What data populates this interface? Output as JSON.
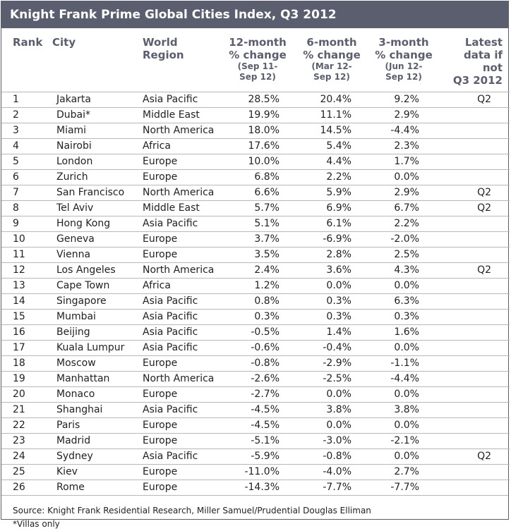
{
  "title": "Knight Frank Prime Global Cities Index, Q3 2012",
  "headers": {
    "rank": "Rank",
    "city": "City",
    "region_line1": "World",
    "region_line2": "Region",
    "m12_line1": "12-month",
    "m12_line2": "% change",
    "m12_sub1": "(Sep 11-",
    "m12_sub2": "Sep 12)",
    "m6_line1": "6-month",
    "m6_line2": "% change",
    "m6_sub1": "(Mar 12-",
    "m6_sub2": "Sep 12)",
    "m3_line1": "3-month",
    "m3_line2": "% change",
    "m3_sub1": "(Jun 12-",
    "m3_sub2": "Sep 12)",
    "latest_line1": "Latest",
    "latest_line2": "data if not",
    "latest_line3": "Q3 2012"
  },
  "rows": [
    {
      "rank": "1",
      "city": "Jakarta",
      "region": "Asia Pacific",
      "m12": "28.5%",
      "m6": "20.4%",
      "m3": "9.2%",
      "latest": "Q2"
    },
    {
      "rank": "2",
      "city": "Dubai*",
      "region": "Middle East",
      "m12": "19.9%",
      "m6": "11.1%",
      "m3": "2.9%",
      "latest": ""
    },
    {
      "rank": "3",
      "city": "Miami",
      "region": "North America",
      "m12": "18.0%",
      "m6": "14.5%",
      "m3": "-4.4%",
      "latest": ""
    },
    {
      "rank": "4",
      "city": "Nairobi",
      "region": "Africa",
      "m12": "17.6%",
      "m6": "5.4%",
      "m3": "2.3%",
      "latest": ""
    },
    {
      "rank": "5",
      "city": "London",
      "region": "Europe",
      "m12": "10.0%",
      "m6": "4.4%",
      "m3": "1.7%",
      "latest": ""
    },
    {
      "rank": "6",
      "city": "Zurich",
      "region": "Europe",
      "m12": "6.8%",
      "m6": "2.2%",
      "m3": "0.0%",
      "latest": ""
    },
    {
      "rank": "7",
      "city": "San Francisco",
      "region": "North America",
      "m12": "6.6%",
      "m6": "5.9%",
      "m3": "2.9%",
      "latest": "Q2"
    },
    {
      "rank": "8",
      "city": "Tel Aviv",
      "region": "Middle East",
      "m12": "5.7%",
      "m6": "6.9%",
      "m3": "6.7%",
      "latest": "Q2"
    },
    {
      "rank": "9",
      "city": "Hong Kong",
      "region": "Asia Pacific",
      "m12": "5.1%",
      "m6": "6.1%",
      "m3": "2.2%",
      "latest": ""
    },
    {
      "rank": "10",
      "city": "Geneva",
      "region": "Europe",
      "m12": "3.7%",
      "m6": "-6.9%",
      "m3": "-2.0%",
      "latest": ""
    },
    {
      "rank": "11",
      "city": "Vienna",
      "region": "Europe",
      "m12": "3.5%",
      "m6": "2.8%",
      "m3": "2.5%",
      "latest": ""
    },
    {
      "rank": "12",
      "city": "Los Angeles",
      "region": "North America",
      "m12": "2.4%",
      "m6": "3.6%",
      "m3": "4.3%",
      "latest": "Q2"
    },
    {
      "rank": "13",
      "city": "Cape Town",
      "region": "Africa",
      "m12": "1.2%",
      "m6": "0.0%",
      "m3": "0.0%",
      "latest": ""
    },
    {
      "rank": "14",
      "city": "Singapore",
      "region": "Asia Pacific",
      "m12": "0.8%",
      "m6": "0.3%",
      "m3": "6.3%",
      "latest": ""
    },
    {
      "rank": "15",
      "city": "Mumbai",
      "region": "Asia Pacific",
      "m12": "0.3%",
      "m6": "0.3%",
      "m3": "0.3%",
      "latest": ""
    },
    {
      "rank": "16",
      "city": "Beijing",
      "region": "Asia Pacific",
      "m12": "-0.5%",
      "m6": "1.4%",
      "m3": "1.6%",
      "latest": ""
    },
    {
      "rank": "17",
      "city": "Kuala Lumpur",
      "region": "Asia Pacific",
      "m12": "-0.6%",
      "m6": "-0.4%",
      "m3": "0.0%",
      "latest": ""
    },
    {
      "rank": "18",
      "city": "Moscow",
      "region": "Europe",
      "m12": "-0.8%",
      "m6": "-2.9%",
      "m3": "-1.1%",
      "latest": ""
    },
    {
      "rank": "19",
      "city": "Manhattan",
      "region": "North America",
      "m12": "-2.6%",
      "m6": "-2.5%",
      "m3": "-4.4%",
      "latest": ""
    },
    {
      "rank": "20",
      "city": "Monaco",
      "region": "Europe",
      "m12": "-2.7%",
      "m6": "0.0%",
      "m3": "0.0%",
      "latest": ""
    },
    {
      "rank": "21",
      "city": "Shanghai",
      "region": "Asia Pacific",
      "m12": "-4.5%",
      "m6": "3.8%",
      "m3": "3.8%",
      "latest": ""
    },
    {
      "rank": "22",
      "city": "Paris",
      "region": "Europe",
      "m12": "-4.5%",
      "m6": "0.0%",
      "m3": "0.0%",
      "latest": ""
    },
    {
      "rank": "23",
      "city": "Madrid",
      "region": "Europe",
      "m12": "-5.1%",
      "m6": "-3.0%",
      "m3": "-2.1%",
      "latest": ""
    },
    {
      "rank": "24",
      "city": "Sydney",
      "region": "Asia Pacific",
      "m12": "-5.9%",
      "m6": "-0.8%",
      "m3": "0.0%",
      "latest": "Q2"
    },
    {
      "rank": "25",
      "city": "Kiev",
      "region": "Europe",
      "m12": "-11.0%",
      "m6": "-4.0%",
      "m3": "2.7%",
      "latest": ""
    },
    {
      "rank": "26",
      "city": "Rome",
      "region": "Europe",
      "m12": "-14.3%",
      "m6": "-7.7%",
      "m3": "-7.7%",
      "latest": ""
    }
  ],
  "footer": {
    "source": "Source: Knight Frank Residential Research, Miller Samuel/Prudential Douglas Elliman",
    "note": "*Villas only"
  },
  "colors": {
    "header_bg": "#5b5e6e",
    "header_text": "#5b5e6e",
    "rule": "#b7b8bd"
  }
}
